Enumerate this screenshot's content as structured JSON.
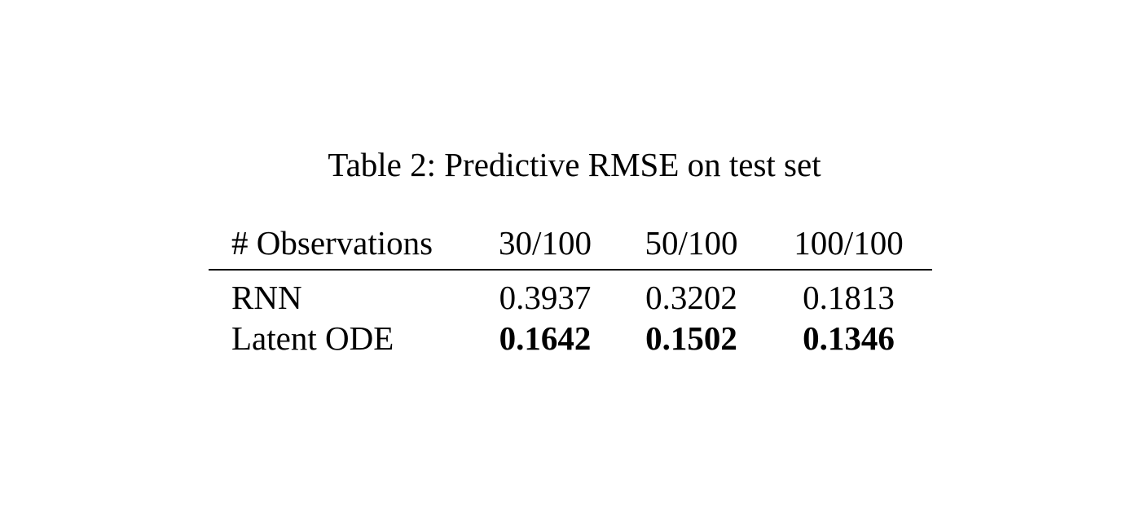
{
  "caption": "Table 2: Predictive RMSE on test set",
  "table": {
    "header": [
      "# Observations",
      "30/100",
      "50/100",
      "100/100"
    ],
    "rows": [
      {
        "label": "RNN",
        "values": [
          "0.3937",
          "0.3202",
          "0.1813"
        ],
        "bold": [
          false,
          false,
          false
        ]
      },
      {
        "label": "Latent ODE",
        "values": [
          "0.1642",
          "0.1502",
          "0.1346"
        ],
        "bold": [
          true,
          true,
          true
        ]
      }
    ]
  }
}
